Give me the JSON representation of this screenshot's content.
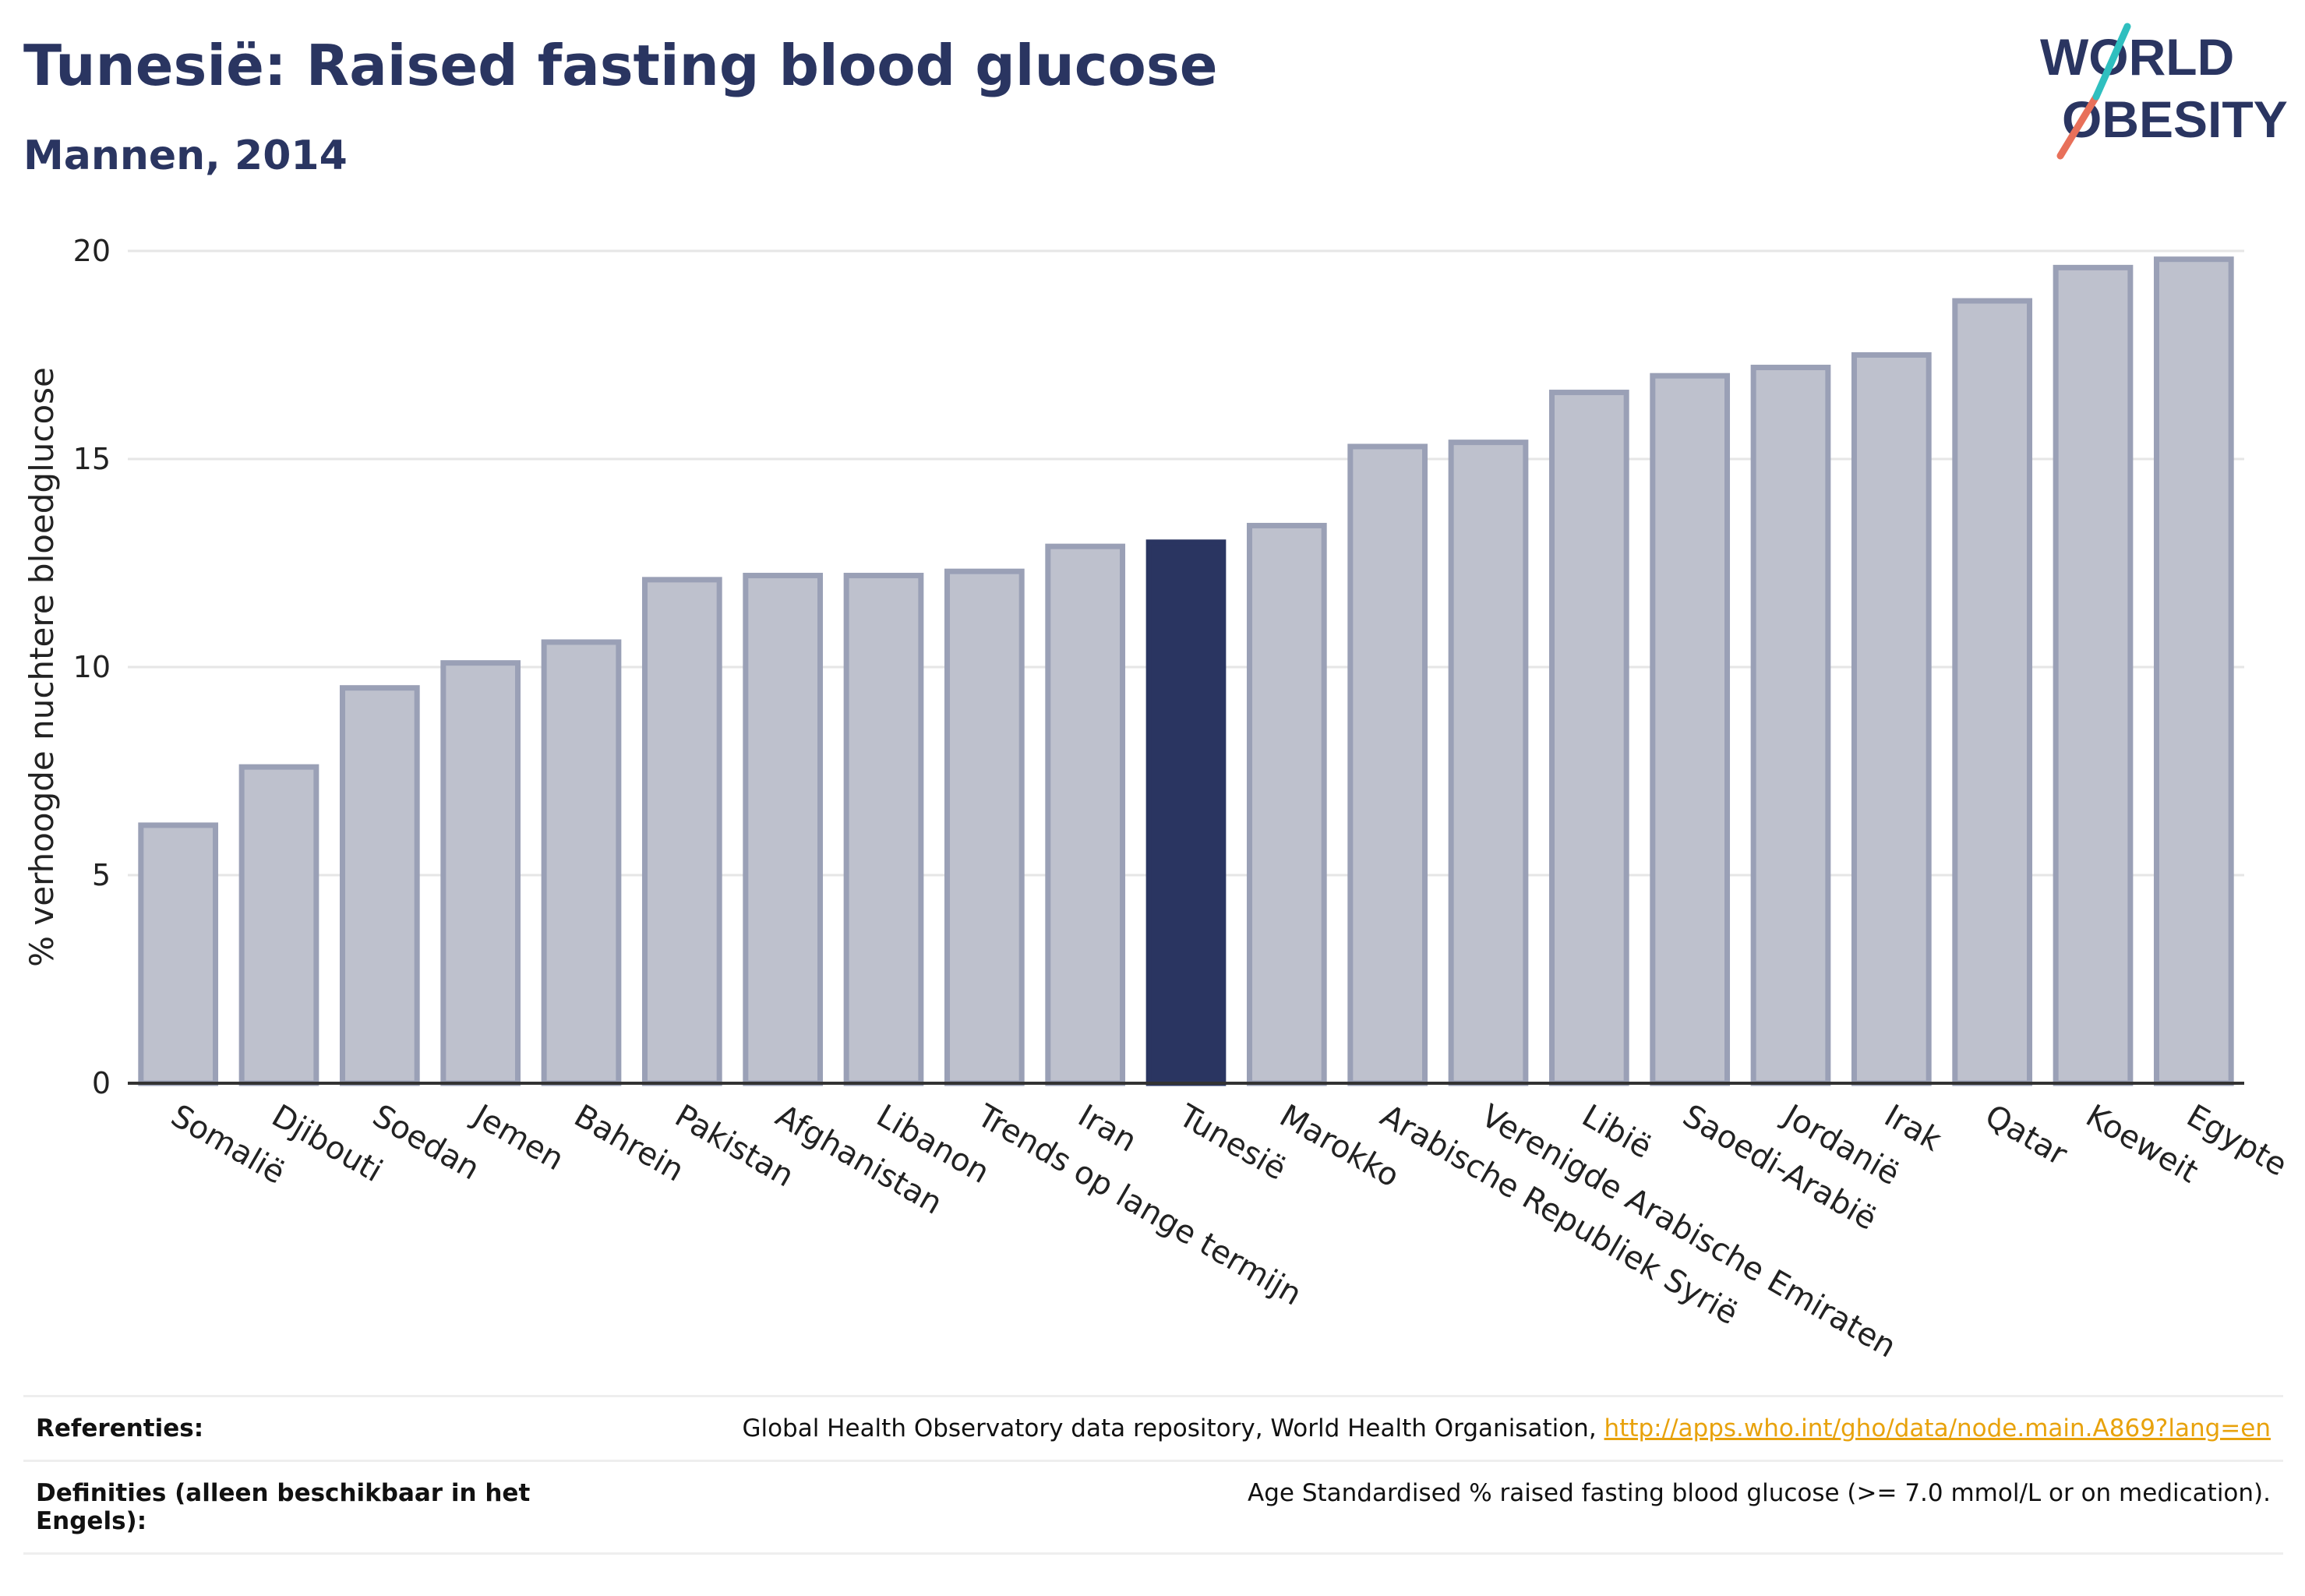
{
  "header": {
    "title": "Tunesië: Raised fasting blood glucose",
    "subtitle": "Mannen, 2014",
    "logo_text": "WORLD OBESITY"
  },
  "colors": {
    "highlight": "#2a3561",
    "bar_fill": "#bec1cd",
    "bar_stroke": "#9aa0b6",
    "grid": "#e6e6e6",
    "axis": "#333333",
    "logo_teal": "#2fbfbf",
    "logo_red": "#e8705a",
    "link": "#e8a20c"
  },
  "chart_data": {
    "type": "bar",
    "title": "",
    "xlabel": "",
    "ylabel": "% verhoogde nuchtere bloedglucose",
    "ylim": [
      0,
      20
    ],
    "yticks": [
      0,
      5,
      10,
      15,
      20
    ],
    "grid": true,
    "highlight": "Tunesië",
    "categories": [
      "Somalië",
      "Djibouti",
      "Soedan",
      "Jemen",
      "Bahrein",
      "Pakistan",
      "Afghanistan",
      "Libanon",
      "Trends op lange termijn",
      "Iran",
      "Tunesië",
      "Marokko",
      "Arabische Republiek Syrië",
      "Verenigde Arabische Emiraten",
      "Libië",
      "Saoedi-Arabië",
      "Jordanië",
      "Irak",
      "Qatar",
      "Koeweit",
      "Egypte"
    ],
    "values": [
      6.2,
      7.6,
      9.5,
      10.1,
      10.6,
      12.1,
      12.2,
      12.2,
      12.3,
      12.9,
      13.0,
      13.4,
      15.3,
      15.4,
      16.6,
      17.0,
      17.2,
      17.5,
      18.8,
      19.6,
      19.8
    ]
  },
  "references": {
    "ref_label": "Referenties:",
    "ref_text": "Global Health Observatory data repository, World Health Organisation, ",
    "ref_link": "http://apps.who.int/gho/data/node.main.A869?lang=en",
    "def_label": "Definities (alleen beschikbaar in het Engels):",
    "def_text": "Age Standardised % raised fasting blood glucose (>= 7.0 mmol/L or on medication)."
  }
}
